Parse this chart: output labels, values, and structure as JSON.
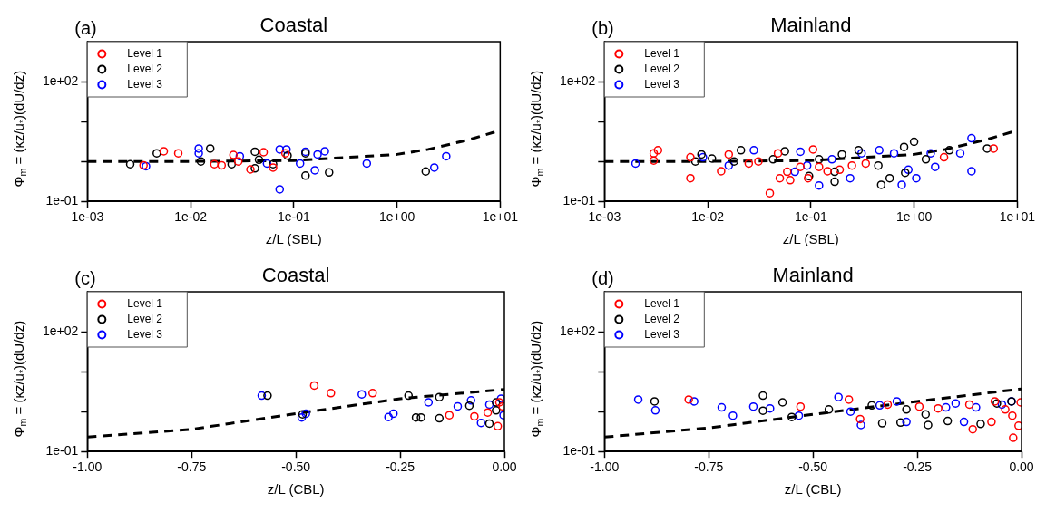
{
  "chart_data": [
    {
      "type": "scatter",
      "title": "Coastal",
      "annotations": [
        "(a)"
      ],
      "xlabel": "z/L (SBL)",
      "ylabel": "Φ$_{m}$ = (κz/u$_{*}$)(dU/dz)",
      "log": "xy",
      "grid": false,
      "legend": "top left",
      "marker": "circle",
      "xlim": [
        0.001,
        10
      ],
      "xticks": [
        {
          "value": 0.001,
          "label": "1e-03"
        },
        {
          "value": 0.01,
          "label": "1e-02"
        },
        {
          "value": 0.1,
          "label": "1e-01"
        },
        {
          "value": 1,
          "label": "1e+00"
        },
        {
          "value": 10,
          "label": "1e+01"
        }
      ],
      "ylim": [
        0.1,
        1000
      ],
      "yticks": [
        {
          "value": 0.1,
          "label": "1e-01"
        },
        {
          "value": 1,
          "label": null
        },
        {
          "value": 10,
          "label": null
        },
        {
          "value": 100,
          "label": "1e+02"
        }
      ],
      "series": [
        {
          "name": "Level 1",
          "color": "#ff0000",
          "x": [
            0.0035,
            0.0055,
            0.0076,
            0.017,
            0.02,
            0.026,
            0.029,
            0.038,
            0.051,
            0.063,
            0.083
          ],
          "values": [
            0.8,
            1.8,
            1.6,
            0.85,
            0.8,
            1.45,
            1.0,
            0.63,
            1.7,
            0.7,
            1.6
          ]
        },
        {
          "name": "Level 2",
          "color": "#000000",
          "x": [
            0.0026,
            0.0047,
            0.0126,
            0.0155,
            0.025,
            0.042,
            0.042,
            0.046,
            0.063,
            0.087,
            0.13,
            0.13,
            0.22,
            1.9
          ],
          "values": [
            0.85,
            1.6,
            1.0,
            2.1,
            0.85,
            1.75,
            0.67,
            1.1,
            0.85,
            1.4,
            0.44,
            1.6,
            0.53,
            0.56
          ]
        },
        {
          "name": "Level 3",
          "color": "#0000ff",
          "x": [
            0.0037,
            0.012,
            0.012,
            0.03,
            0.055,
            0.073,
            0.073,
            0.085,
            0.115,
            0.13,
            0.16,
            0.17,
            0.2,
            0.51,
            2.3,
            3.0
          ],
          "values": [
            0.76,
            2.1,
            1.6,
            1.35,
            0.89,
            2.0,
            0.2,
            2.0,
            0.89,
            1.75,
            0.6,
            1.5,
            1.8,
            0.89,
            0.7,
            1.35
          ]
        },
        {
          "type": "line",
          "color": "#000000",
          "line_style": "dashed",
          "marker": "none",
          "x": [
            0.001,
            0.01,
            0.1,
            1,
            2,
            5,
            10
          ],
          "values": [
            1,
            1,
            1.05,
            1.5,
            2,
            3.5,
            6
          ]
        }
      ]
    },
    {
      "type": "scatter",
      "title": "Mainland",
      "annotations": [
        "(b)"
      ],
      "xlabel": "z/L (SBL)",
      "ylabel": "Φ$_{m}$ = (κz/u$_{*}$)(dU/dz)",
      "log": "xy",
      "grid": false,
      "legend": "top left",
      "marker": "circle",
      "xlim": [
        0.001,
        10
      ],
      "xticks": [
        {
          "value": 0.001,
          "label": "1e-03"
        },
        {
          "value": 0.01,
          "label": "1e-02"
        },
        {
          "value": 0.1,
          "label": "1e-01"
        },
        {
          "value": 1,
          "label": "1e+00"
        },
        {
          "value": 10,
          "label": "1e+01"
        }
      ],
      "ylim": [
        0.1,
        1000
      ],
      "yticks": [
        {
          "value": 0.1,
          "label": "1e-01"
        },
        {
          "value": 1,
          "label": null
        },
        {
          "value": 10,
          "label": null
        },
        {
          "value": 100,
          "label": "1e+02"
        }
      ],
      "series": [
        {
          "name": "Level 1",
          "color": "#ff0000",
          "x": [
            0.003,
            0.0033,
            0.003,
            0.0068,
            0.0068,
            0.0135,
            0.016,
            0.025,
            0.031,
            0.04,
            0.048,
            0.05,
            0.059,
            0.063,
            0.079,
            0.094,
            0.105,
            0.12,
            0.145,
            0.19,
            0.25,
            0.34,
            1.95,
            5.9
          ],
          "values": [
            1.6,
            1.9,
            1.05,
            0.38,
            1.27,
            0.57,
            1.5,
            0.89,
            1.0,
            0.16,
            1.6,
            0.38,
            0.55,
            0.34,
            0.73,
            0.38,
            2.0,
            0.73,
            0.57,
            0.62,
            0.79,
            0.89,
            1.27,
            2.1
          ]
        },
        {
          "name": "Level 2",
          "color": "#000000",
          "x": [
            0.0076,
            0.0087,
            0.011,
            0.018,
            0.021,
            0.043,
            0.056,
            0.096,
            0.12,
            0.17,
            0.17,
            0.2,
            0.29,
            0.45,
            0.48,
            0.58,
            0.8,
            0.82,
            1.0,
            1.3,
            2.2,
            5.1
          ],
          "values": [
            1.0,
            1.5,
            1.18,
            1.0,
            1.9,
            1.13,
            1.8,
            0.43,
            1.13,
            0.55,
            0.31,
            1.5,
            1.9,
            0.79,
            0.26,
            0.38,
            2.3,
            0.52,
            3.1,
            1.13,
            1.9,
            2.1
          ]
        },
        {
          "name": "Level 3",
          "color": "#0000ff",
          "x": [
            0.002,
            0.009,
            0.016,
            0.028,
            0.07,
            0.079,
            0.092,
            0.12,
            0.16,
            0.24,
            0.31,
            0.46,
            0.64,
            0.76,
            0.88,
            1.05,
            1.45,
            1.6,
            2.8,
            3.6,
            3.6
          ],
          "values": [
            0.89,
            1.27,
            0.79,
            1.9,
            0.55,
            1.75,
            0.79,
            0.25,
            1.13,
            0.38,
            1.6,
            1.9,
            1.6,
            0.26,
            0.62,
            0.38,
            1.6,
            0.73,
            1.6,
            3.8,
            0.57
          ]
        },
        {
          "type": "line",
          "color": "#000000",
          "line_style": "dashed",
          "marker": "none",
          "x": [
            0.001,
            0.01,
            0.1,
            1,
            2,
            5,
            10
          ],
          "values": [
            1,
            1,
            1.05,
            1.5,
            2,
            3.5,
            6
          ]
        }
      ]
    },
    {
      "type": "scatter",
      "title": "Coastal",
      "annotations": [
        "(c)"
      ],
      "xlabel": "z/L (CBL)",
      "ylabel": "Φ$_{m}$ = (κz/u$_{*}$)(dU/dz)",
      "log": "y",
      "grid": false,
      "legend": "top left",
      "marker": "circle",
      "xlim": [
        -1,
        0
      ],
      "xticks": [
        {
          "value": -1,
          "label": "-1.00"
        },
        {
          "value": -0.75,
          "label": "-0.75"
        },
        {
          "value": -0.5,
          "label": "-0.50"
        },
        {
          "value": -0.25,
          "label": "-0.25"
        },
        {
          "value": 0,
          "label": "0.00"
        }
      ],
      "ylim": [
        0.1,
        1000
      ],
      "yticks": [
        {
          "value": 0.1,
          "label": "1e-01"
        },
        {
          "value": 1,
          "label": null
        },
        {
          "value": 10,
          "label": null
        },
        {
          "value": 100,
          "label": "1e+02"
        }
      ],
      "series": [
        {
          "name": "Level 1",
          "color": "#ff0000",
          "x": [
            -0.456,
            -0.416,
            -0.316,
            -0.132,
            -0.072,
            -0.04,
            -0.016,
            -0.012,
            -0.004
          ],
          "values": [
            4.5,
            2.9,
            2.9,
            0.81,
            0.76,
            0.95,
            0.43,
            1.7,
            1.35
          ]
        },
        {
          "name": "Level 2",
          "color": "#000000",
          "x": [
            -0.568,
            -0.484,
            -0.23,
            -0.212,
            -0.2,
            -0.156,
            -0.156,
            -0.084,
            -0.036,
            -0.02,
            -0.02
          ],
          "values": [
            2.5,
            0.85,
            2.5,
            0.71,
            0.71,
            0.68,
            2.3,
            1.4,
            0.5,
            1.7,
            1.07
          ]
        },
        {
          "name": "Level 3",
          "color": "#0000ff",
          "x": [
            -0.582,
            -0.486,
            -0.476,
            -0.342,
            -0.278,
            -0.266,
            -0.182,
            -0.112,
            -0.08,
            -0.056,
            -0.036,
            -0.008,
            -0.002
          ],
          "values": [
            2.5,
            0.71,
            0.89,
            2.7,
            0.73,
            0.89,
            1.7,
            1.35,
            1.9,
            0.52,
            1.5,
            2.1,
            0.81
          ]
        },
        {
          "type": "line",
          "color": "#000000",
          "line_style": "dashed",
          "marker": "none",
          "x": [
            -1,
            -0.75,
            -0.5,
            -0.25,
            0
          ],
          "values": [
            0.23,
            0.36,
            0.89,
            2.1,
            3.6
          ]
        }
      ]
    },
    {
      "type": "scatter",
      "title": "Mainland",
      "annotations": [
        "(d)"
      ],
      "xlabel": "z/L (CBL)",
      "ylabel": "Φ$_{m}$ = (κz/u$_{*}$)(dU/dz)",
      "log": "y",
      "grid": false,
      "legend": "top left",
      "marker": "circle",
      "xlim": [
        -1,
        0
      ],
      "xticks": [
        {
          "value": -1,
          "label": "-1.00"
        },
        {
          "value": -0.75,
          "label": "-0.75"
        },
        {
          "value": -0.5,
          "label": "-0.50"
        },
        {
          "value": -0.25,
          "label": "-0.25"
        },
        {
          "value": 0,
          "label": "0.00"
        }
      ],
      "ylim": [
        0.1,
        1000
      ],
      "yticks": [
        {
          "value": 0.1,
          "label": "1e-01"
        },
        {
          "value": 1,
          "label": null
        },
        {
          "value": 10,
          "label": null
        },
        {
          "value": 100,
          "label": "1e+02"
        }
      ],
      "series": [
        {
          "name": "Level 1",
          "color": "#ff0000",
          "x": [
            -0.798,
            -0.53,
            -0.414,
            -0.387,
            -0.321,
            -0.245,
            -0.2,
            -0.117,
            -0.125,
            -0.072,
            -0.064,
            -0.039,
            -0.022,
            -0.02,
            -0.007,
            -0.002
          ],
          "values": [
            2.0,
            1.33,
            2.0,
            0.65,
            1.5,
            1.33,
            1.2,
            0.36,
            1.5,
            0.55,
            1.8,
            1.13,
            0.79,
            0.22,
            0.44,
            1.7
          ]
        },
        {
          "name": "Level 2",
          "color": "#000000",
          "x": [
            -0.88,
            -0.62,
            -0.62,
            -0.573,
            -0.551,
            -0.462,
            -0.359,
            -0.334,
            -0.29,
            -0.276,
            -0.224,
            -0.23,
            -0.177,
            -0.098,
            -0.059,
            -0.024
          ],
          "values": [
            1.8,
            2.5,
            1.05,
            1.7,
            0.73,
            1.13,
            1.43,
            0.51,
            0.53,
            1.13,
            0.46,
            0.85,
            0.58,
            0.49,
            1.6,
            1.8
          ]
        },
        {
          "name": "Level 3",
          "color": "#0000ff",
          "x": [
            -0.919,
            -0.878,
            -0.785,
            -0.719,
            -0.692,
            -0.643,
            -0.603,
            -0.534,
            -0.439,
            -0.41,
            -0.385,
            -0.34,
            -0.299,
            -0.276,
            -0.181,
            -0.158,
            -0.138,
            -0.109,
            -0.047,
            -0.024
          ],
          "values": [
            2.0,
            1.07,
            1.8,
            1.27,
            0.79,
            1.33,
            1.2,
            0.79,
            2.3,
            1.0,
            0.46,
            1.43,
            1.8,
            0.55,
            1.27,
            1.6,
            0.55,
            1.27,
            1.5,
            1.8
          ]
        },
        {
          "type": "line",
          "color": "#000000",
          "line_style": "dashed",
          "marker": "none",
          "x": [
            -1,
            -0.75,
            -0.5,
            -0.25,
            0
          ],
          "values": [
            0.23,
            0.39,
            0.85,
            1.8,
            3.7
          ]
        }
      ]
    }
  ]
}
